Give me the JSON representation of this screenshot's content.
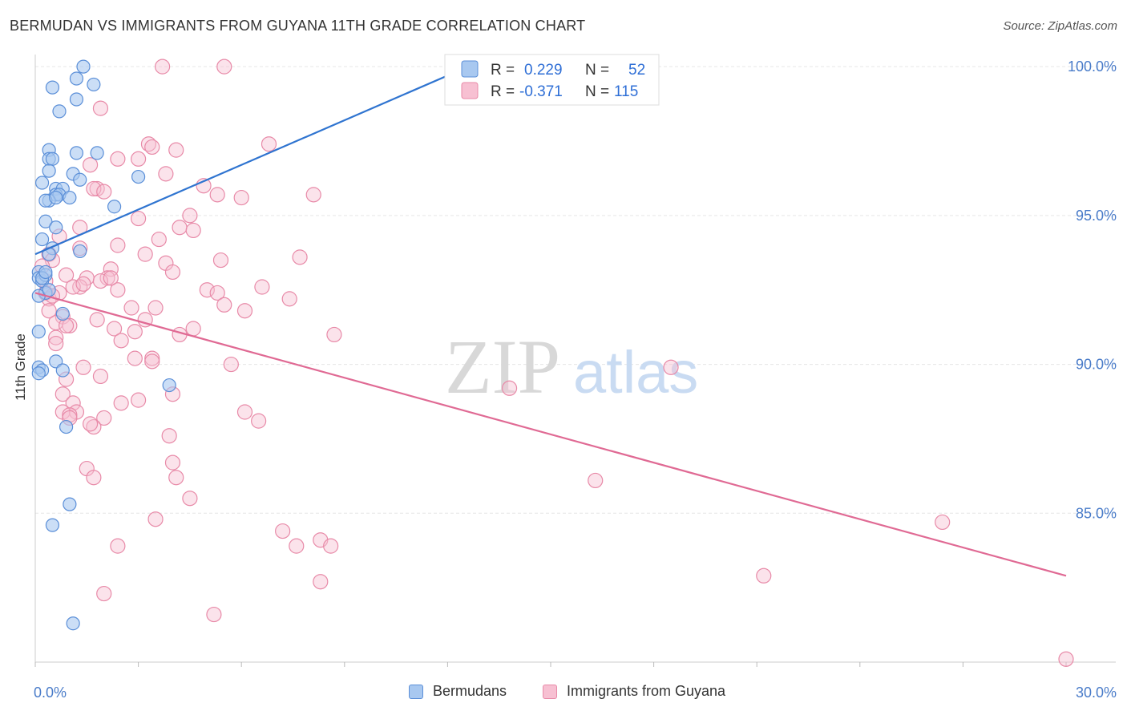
{
  "header": {
    "title": "BERMUDAN VS IMMIGRANTS FROM GUYANA 11TH GRADE CORRELATION CHART",
    "source": "Source: ZipAtlas.com"
  },
  "watermark": {
    "zip": "ZIP",
    "atlas": "atlas"
  },
  "legend": {
    "rows": [
      {
        "r_label": "R =",
        "r_value": "0.229",
        "n_label": "N =",
        "n_value": "52"
      },
      {
        "r_label": "R =",
        "r_value": "-0.371",
        "n_label": "N =",
        "n_value": "115"
      }
    ]
  },
  "bottom_legend": {
    "series1": "Bermudans",
    "series2": "Immigrants from Guyana"
  },
  "colors": {
    "blue_fill": "#a8c8f0",
    "blue_stroke": "#5b8fd8",
    "blue_line": "#2f74d0",
    "pink_fill": "#f7c0d2",
    "pink_stroke": "#e88aa8",
    "pink_line": "#e06a94",
    "grid": "#e6e6e6",
    "axis_text": "#4a7cc9"
  },
  "chart_data": {
    "type": "scatter",
    "title": "BERMUDAN VS IMMIGRANTS FROM GUYANA 11TH GRADE CORRELATION CHART",
    "xlabel": "",
    "ylabel": "11th Grade",
    "xlim": [
      0,
      30
    ],
    "ylim": [
      80,
      100.3
    ],
    "x_tick_labels": [
      "0.0%",
      "30.0%"
    ],
    "y_ticks": [
      85,
      90,
      95,
      100
    ],
    "y_tick_labels": [
      "85.0%",
      "90.0%",
      "95.0%",
      "100.0%"
    ],
    "series": [
      {
        "name": "Bermudans",
        "r": 0.229,
        "n": 52,
        "trend": {
          "x": [
            0,
            13.0
          ],
          "y": [
            93.7,
            100.2
          ]
        },
        "points": [
          [
            1.4,
            100.0
          ],
          [
            1.2,
            99.6
          ],
          [
            1.7,
            99.4
          ],
          [
            0.5,
            99.3
          ],
          [
            1.2,
            98.9
          ],
          [
            0.7,
            98.5
          ],
          [
            0.4,
            97.2
          ],
          [
            1.2,
            97.1
          ],
          [
            1.8,
            97.1
          ],
          [
            0.4,
            96.9
          ],
          [
            0.5,
            96.9
          ],
          [
            0.4,
            96.5
          ],
          [
            1.1,
            96.4
          ],
          [
            3.0,
            96.3
          ],
          [
            1.3,
            96.2
          ],
          [
            0.2,
            96.1
          ],
          [
            0.6,
            95.9
          ],
          [
            0.8,
            95.9
          ],
          [
            0.6,
            95.7
          ],
          [
            0.7,
            95.7
          ],
          [
            1.0,
            95.6
          ],
          [
            0.4,
            95.5
          ],
          [
            0.3,
            95.5
          ],
          [
            2.3,
            95.3
          ],
          [
            0.3,
            94.8
          ],
          [
            0.6,
            94.6
          ],
          [
            0.2,
            94.2
          ],
          [
            0.5,
            93.9
          ],
          [
            1.3,
            93.8
          ],
          [
            0.4,
            93.7
          ],
          [
            0.1,
            93.1
          ],
          [
            0.1,
            92.9
          ],
          [
            0.2,
            92.8
          ],
          [
            0.3,
            92.4
          ],
          [
            0.1,
            92.3
          ],
          [
            0.8,
            91.7
          ],
          [
            0.1,
            91.1
          ],
          [
            0.6,
            90.1
          ],
          [
            0.1,
            89.9
          ],
          [
            0.2,
            89.8
          ],
          [
            0.8,
            89.8
          ],
          [
            3.9,
            89.3
          ],
          [
            0.9,
            87.9
          ],
          [
            1.0,
            85.3
          ],
          [
            0.5,
            84.6
          ],
          [
            1.1,
            81.3
          ],
          [
            0.3,
            93.0
          ],
          [
            0.2,
            92.9
          ],
          [
            0.1,
            89.7
          ],
          [
            0.4,
            92.5
          ],
          [
            0.6,
            95.6
          ],
          [
            0.3,
            93.1
          ]
        ]
      },
      {
        "name": "Immigrants from Guyana",
        "r": -0.371,
        "n": 115,
        "trend": {
          "x": [
            0,
            30
          ],
          "y": [
            92.4,
            82.9
          ]
        },
        "points": [
          [
            3.7,
            100.0
          ],
          [
            5.5,
            100.0
          ],
          [
            1.9,
            98.6
          ],
          [
            3.3,
            97.4
          ],
          [
            6.8,
            97.4
          ],
          [
            3.4,
            97.3
          ],
          [
            4.1,
            97.2
          ],
          [
            2.4,
            96.9
          ],
          [
            3.0,
            96.9
          ],
          [
            1.6,
            96.7
          ],
          [
            3.8,
            96.4
          ],
          [
            4.9,
            96.0
          ],
          [
            1.8,
            95.9
          ],
          [
            1.7,
            95.9
          ],
          [
            2.0,
            95.8
          ],
          [
            8.1,
            95.7
          ],
          [
            5.3,
            95.7
          ],
          [
            6.0,
            95.6
          ],
          [
            4.5,
            95.0
          ],
          [
            3.0,
            94.9
          ],
          [
            1.3,
            94.6
          ],
          [
            4.2,
            94.6
          ],
          [
            4.6,
            94.5
          ],
          [
            3.6,
            94.2
          ],
          [
            2.4,
            94.0
          ],
          [
            1.3,
            93.9
          ],
          [
            3.2,
            93.7
          ],
          [
            0.4,
            93.7
          ],
          [
            0.5,
            93.5
          ],
          [
            7.7,
            93.6
          ],
          [
            5.4,
            93.5
          ],
          [
            3.8,
            93.4
          ],
          [
            2.2,
            93.2
          ],
          [
            4.0,
            93.1
          ],
          [
            0.9,
            93.0
          ],
          [
            1.5,
            92.9
          ],
          [
            2.1,
            92.9
          ],
          [
            1.9,
            92.8
          ],
          [
            0.3,
            92.8
          ],
          [
            1.3,
            92.6
          ],
          [
            6.6,
            92.6
          ],
          [
            1.1,
            92.6
          ],
          [
            5.0,
            92.5
          ],
          [
            5.3,
            92.4
          ],
          [
            2.4,
            92.5
          ],
          [
            0.3,
            92.4
          ],
          [
            0.4,
            92.2
          ],
          [
            7.4,
            92.2
          ],
          [
            5.5,
            92.0
          ],
          [
            2.8,
            91.9
          ],
          [
            3.5,
            91.9
          ],
          [
            0.4,
            91.8
          ],
          [
            6.1,
            91.8
          ],
          [
            0.8,
            91.6
          ],
          [
            1.8,
            91.5
          ],
          [
            3.2,
            91.5
          ],
          [
            0.6,
            91.4
          ],
          [
            1.0,
            91.3
          ],
          [
            2.3,
            91.2
          ],
          [
            4.6,
            91.2
          ],
          [
            2.9,
            91.1
          ],
          [
            4.2,
            91.0
          ],
          [
            8.7,
            91.0
          ],
          [
            0.6,
            90.9
          ],
          [
            2.5,
            90.8
          ],
          [
            0.6,
            90.7
          ],
          [
            3.4,
            90.2
          ],
          [
            2.9,
            90.2
          ],
          [
            5.7,
            90.0
          ],
          [
            1.4,
            89.9
          ],
          [
            1.9,
            89.6
          ],
          [
            18.5,
            89.9
          ],
          [
            0.9,
            89.5
          ],
          [
            4.0,
            89.0
          ],
          [
            0.8,
            89.0
          ],
          [
            13.8,
            89.2
          ],
          [
            1.1,
            88.7
          ],
          [
            2.5,
            88.7
          ],
          [
            3.0,
            88.8
          ],
          [
            6.1,
            88.4
          ],
          [
            0.8,
            88.4
          ],
          [
            1.2,
            88.4
          ],
          [
            1.0,
            88.3
          ],
          [
            6.5,
            88.1
          ],
          [
            2.0,
            88.2
          ],
          [
            1.0,
            88.2
          ],
          [
            1.7,
            87.9
          ],
          [
            3.9,
            87.6
          ],
          [
            4.0,
            86.7
          ],
          [
            1.5,
            86.5
          ],
          [
            16.3,
            86.1
          ],
          [
            4.1,
            86.2
          ],
          [
            1.7,
            86.2
          ],
          [
            4.5,
            85.5
          ],
          [
            3.5,
            84.8
          ],
          [
            7.2,
            84.4
          ],
          [
            26.4,
            84.7
          ],
          [
            8.3,
            84.1
          ],
          [
            2.4,
            83.9
          ],
          [
            7.6,
            83.9
          ],
          [
            8.6,
            83.9
          ],
          [
            21.2,
            82.9
          ],
          [
            8.3,
            82.7
          ],
          [
            2.0,
            82.3
          ],
          [
            5.2,
            81.6
          ],
          [
            30.0,
            80.1
          ],
          [
            0.7,
            92.4
          ],
          [
            1.4,
            92.7
          ],
          [
            0.2,
            93.3
          ],
          [
            0.5,
            92.3
          ],
          [
            0.9,
            91.3
          ],
          [
            1.6,
            88.0
          ],
          [
            2.2,
            92.9
          ],
          [
            3.4,
            90.1
          ],
          [
            0.7,
            94.3
          ]
        ]
      }
    ]
  }
}
